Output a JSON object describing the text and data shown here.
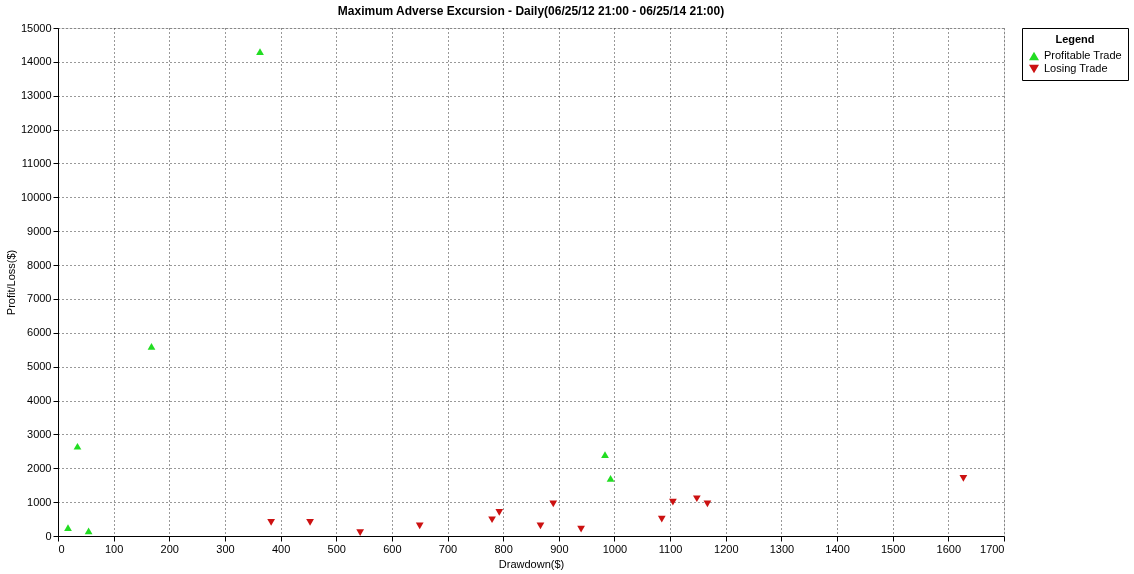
{
  "chart_data": {
    "type": "scatter",
    "title": "Maximum Adverse Excursion - Daily(06/25/12 21:00 - 06/25/14 21:00)",
    "xlabel": "Drawdown($)",
    "ylabel": "Profit/Loss($)",
    "legend_title": "Legend",
    "legend": "right",
    "grid": true,
    "line_style": "dotted",
    "xlim": [
      0,
      1700
    ],
    "xticks": [
      0,
      100,
      200,
      300,
      400,
      500,
      600,
      700,
      800,
      900,
      1000,
      1100,
      1200,
      1300,
      1400,
      1500,
      1600,
      1700
    ],
    "ylim": [
      0,
      15000
    ],
    "yticks": [
      0,
      1000,
      2000,
      3000,
      4000,
      5000,
      6000,
      7000,
      8000,
      9000,
      10000,
      11000,
      12000,
      13000,
      14000,
      15000
    ],
    "series": [
      {
        "name": "Profitable Trade",
        "color": "#22dd22",
        "marker": "triangle",
        "x": [
          18,
          35,
          55,
          168,
          363,
          983,
          993
        ],
        "values": [
          250,
          2650,
          150,
          5600,
          14300,
          2400,
          1700
        ]
      },
      {
        "name": "Losing Trade",
        "color": "#cc1111",
        "marker": "triangle-down",
        "x": [
          383,
          453,
          543,
          650,
          780,
          793,
          867,
          890,
          940,
          1085,
          1105,
          1148,
          1167,
          1627
        ],
        "values": [
          400,
          400,
          100,
          300,
          480,
          700,
          300,
          950,
          200,
          500,
          1000,
          1100,
          950,
          1700
        ]
      }
    ]
  }
}
